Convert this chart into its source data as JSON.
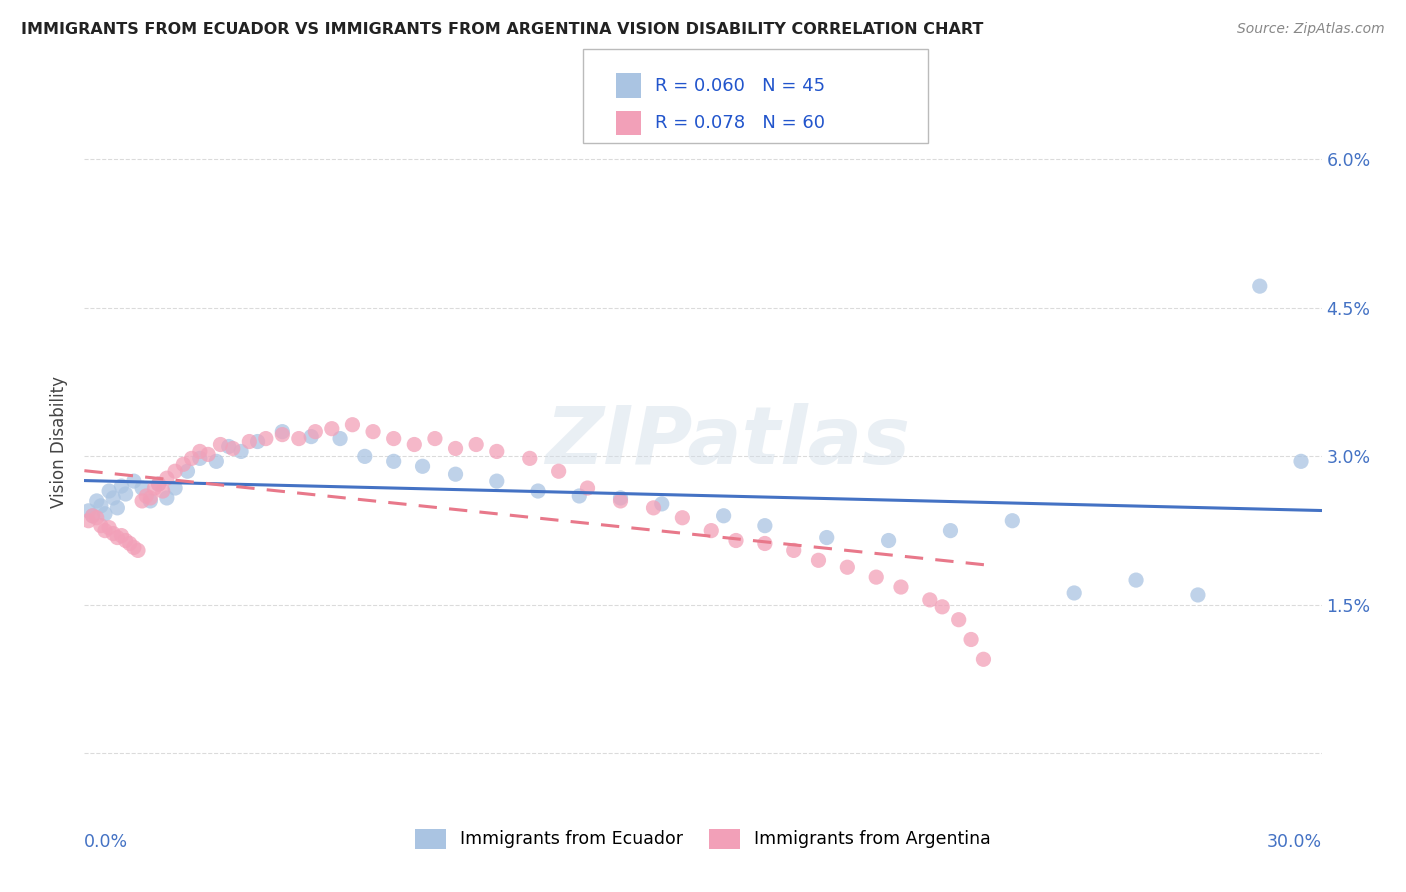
{
  "title": "IMMIGRANTS FROM ECUADOR VS IMMIGRANTS FROM ARGENTINA VISION DISABILITY CORRELATION CHART",
  "source": "Source: ZipAtlas.com",
  "ylabel": "Vision Disability",
  "y_ticks": [
    0.0,
    0.015,
    0.03,
    0.045,
    0.06
  ],
  "y_tick_labels": [
    "",
    "1.5%",
    "3.0%",
    "4.5%",
    "6.0%"
  ],
  "x_range": [
    0.0,
    0.3
  ],
  "y_range": [
    -0.005,
    0.068
  ],
  "ecuador_color": "#aac4e2",
  "argentina_color": "#f2a0b8",
  "ecuador_line_color": "#4472c4",
  "argentina_line_color": "#e8788a",
  "ecuador_R": "0.060",
  "ecuador_N": "45",
  "argentina_R": "0.078",
  "argentina_N": "60",
  "watermark_text": "ZIPatlas",
  "legend_label_ecuador": "Immigrants from Ecuador",
  "legend_label_argentina": "Immigrants from Argentina",
  "ecuador_x": [
    0.001,
    0.002,
    0.003,
    0.004,
    0.005,
    0.006,
    0.007,
    0.008,
    0.009,
    0.01,
    0.012,
    0.014,
    0.016,
    0.018,
    0.02,
    0.022,
    0.025,
    0.028,
    0.032,
    0.035,
    0.038,
    0.042,
    0.048,
    0.055,
    0.062,
    0.068,
    0.075,
    0.082,
    0.09,
    0.1,
    0.11,
    0.12,
    0.13,
    0.14,
    0.155,
    0.165,
    0.18,
    0.195,
    0.21,
    0.225,
    0.24,
    0.255,
    0.27,
    0.285,
    0.295
  ],
  "ecuador_y": [
    0.0245,
    0.024,
    0.0255,
    0.025,
    0.0242,
    0.0265,
    0.0258,
    0.0248,
    0.027,
    0.0262,
    0.0275,
    0.0268,
    0.0255,
    0.0272,
    0.0258,
    0.0268,
    0.0285,
    0.0298,
    0.0295,
    0.031,
    0.0305,
    0.0315,
    0.0325,
    0.032,
    0.0318,
    0.03,
    0.0295,
    0.029,
    0.0282,
    0.0275,
    0.0265,
    0.026,
    0.0258,
    0.0252,
    0.024,
    0.023,
    0.0218,
    0.0215,
    0.0225,
    0.0235,
    0.0162,
    0.0175,
    0.016,
    0.0472,
    0.0295
  ],
  "argentina_x": [
    0.001,
    0.002,
    0.003,
    0.004,
    0.005,
    0.006,
    0.007,
    0.008,
    0.009,
    0.01,
    0.011,
    0.012,
    0.013,
    0.014,
    0.015,
    0.016,
    0.017,
    0.018,
    0.019,
    0.02,
    0.022,
    0.024,
    0.026,
    0.028,
    0.03,
    0.033,
    0.036,
    0.04,
    0.044,
    0.048,
    0.052,
    0.056,
    0.06,
    0.065,
    0.07,
    0.075,
    0.08,
    0.085,
    0.09,
    0.095,
    0.1,
    0.108,
    0.115,
    0.122,
    0.13,
    0.138,
    0.145,
    0.152,
    0.158,
    0.165,
    0.172,
    0.178,
    0.185,
    0.192,
    0.198,
    0.205,
    0.208,
    0.212,
    0.215,
    0.218
  ],
  "argentina_y": [
    0.0235,
    0.024,
    0.0238,
    0.023,
    0.0225,
    0.0228,
    0.0222,
    0.0218,
    0.022,
    0.0215,
    0.0212,
    0.0208,
    0.0205,
    0.0255,
    0.026,
    0.0258,
    0.0268,
    0.0272,
    0.0265,
    0.0278,
    0.0285,
    0.0292,
    0.0298,
    0.0305,
    0.0302,
    0.0312,
    0.0308,
    0.0315,
    0.0318,
    0.0322,
    0.0318,
    0.0325,
    0.0328,
    0.0332,
    0.0325,
    0.0318,
    0.0312,
    0.0318,
    0.0308,
    0.0312,
    0.0305,
    0.0298,
    0.0285,
    0.0268,
    0.0255,
    0.0248,
    0.0238,
    0.0225,
    0.0215,
    0.0212,
    0.0205,
    0.0195,
    0.0188,
    0.0178,
    0.0168,
    0.0155,
    0.0148,
    0.0135,
    0.0115,
    0.0095
  ]
}
